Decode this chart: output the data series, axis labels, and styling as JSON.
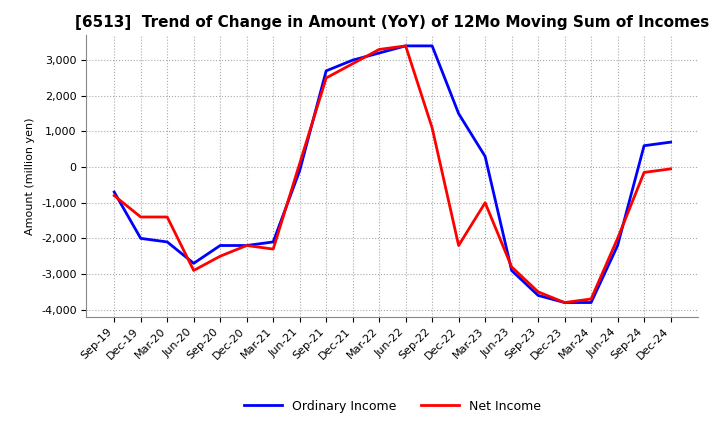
{
  "title": "[6513]  Trend of Change in Amount (YoY) of 12Mo Moving Sum of Incomes",
  "ylabel": "Amount (million yen)",
  "x_labels": [
    "Sep-19",
    "Dec-19",
    "Mar-20",
    "Jun-20",
    "Sep-20",
    "Dec-20",
    "Mar-21",
    "Jun-21",
    "Sep-21",
    "Dec-21",
    "Mar-22",
    "Jun-22",
    "Sep-22",
    "Dec-22",
    "Mar-23",
    "Jun-23",
    "Sep-23",
    "Dec-23",
    "Mar-24",
    "Jun-24",
    "Sep-24",
    "Dec-24"
  ],
  "ordinary_income": [
    -700,
    -2000,
    -2100,
    -2700,
    -2200,
    -2200,
    -2100,
    -100,
    2700,
    3000,
    3200,
    3400,
    3400,
    1500,
    300,
    -2900,
    -3600,
    -3800,
    -3800,
    -2200,
    600,
    700
  ],
  "net_income": [
    -800,
    -1400,
    -1400,
    -2900,
    -2500,
    -2200,
    -2300,
    100,
    2500,
    2900,
    3300,
    3400,
    1100,
    -2200,
    -1000,
    -2800,
    -3500,
    -3800,
    -3700,
    -2000,
    -150,
    -50
  ],
  "ordinary_color": "#0000ff",
  "net_color": "#ff0000",
  "ylim": [
    -4200,
    3700
  ],
  "yticks": [
    -4000,
    -3000,
    -2000,
    -1000,
    0,
    1000,
    2000,
    3000
  ],
  "background_color": "#ffffff",
  "grid_color": "#aaaaaa",
  "title_fontsize": 11,
  "axis_fontsize": 8,
  "legend_fontsize": 9
}
